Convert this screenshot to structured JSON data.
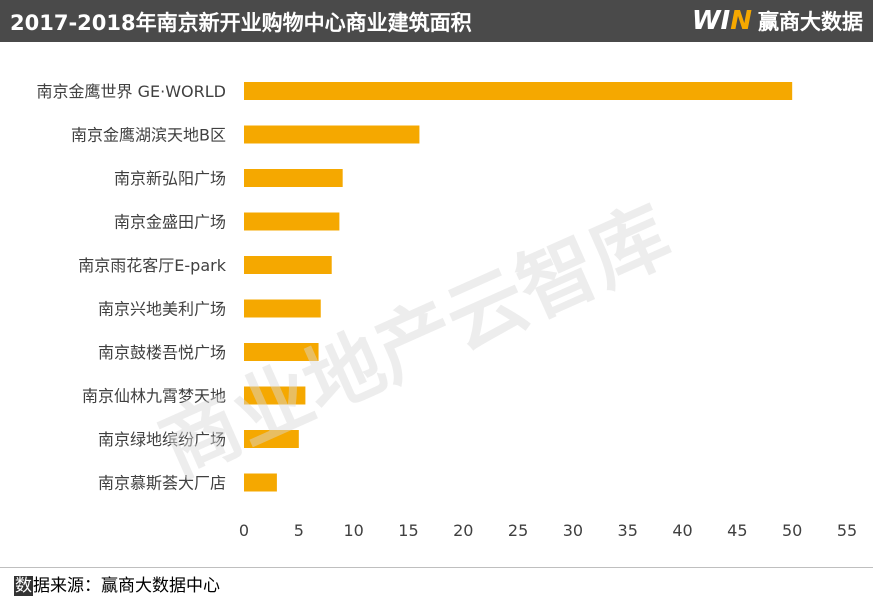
{
  "header": {
    "title": "2017-2018年南京新开业购物中心商业建筑面积",
    "brand_mark_left": "WI",
    "brand_mark_right": "N",
    "brand_name": "赢商大数据"
  },
  "watermark": "商业地产云智库",
  "footer": {
    "source_highlight": "数",
    "source_rest": "据来源：赢商大数据中心"
  },
  "colors": {
    "bar": "#F5A800",
    "header_bg": "#4A4A4A",
    "axis_text": "#404040"
  },
  "chart_data": {
    "type": "bar",
    "orientation": "horizontal",
    "categories": [
      "南京金鹰世界 GE·WORLD",
      "南京金鹰湖滨天地B区",
      "南京新弘阳广场",
      "南京金盛田广场",
      "南京雨花客厅E-park",
      "南京兴地美利广场",
      "南京鼓楼吾悦广场",
      "南京仙林九霄梦天地",
      "南京绿地缤纷广场",
      "南京慕斯荟大厂店"
    ],
    "values": [
      50,
      16,
      9,
      8.7,
      8,
      7,
      6.8,
      5.6,
      5,
      3
    ],
    "xticks": [
      "0",
      "5",
      "10",
      "15",
      "20",
      "25",
      "30",
      "35",
      "40",
      "45",
      "50",
      "55"
    ],
    "xlim": [
      0,
      55
    ],
    "title": "2017-2018年南京新开业购物中心商业建筑面积",
    "xlabel": "",
    "ylabel": "",
    "grid": false,
    "legend": "none"
  }
}
